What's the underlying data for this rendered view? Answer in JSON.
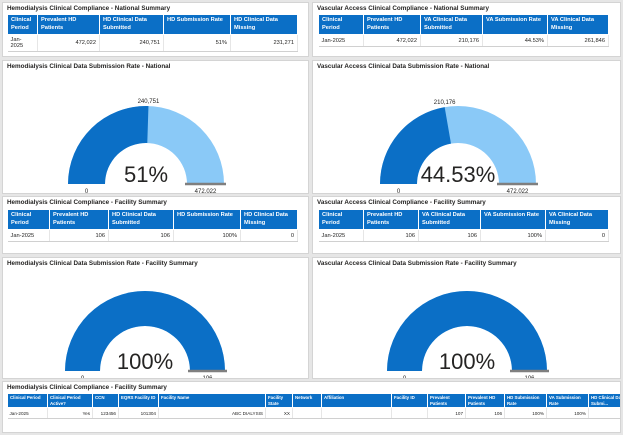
{
  "colors": {
    "header_blue": "#0b6fc6",
    "gauge_fill": "#0b6fc6",
    "gauge_bg": "#8ac9f7",
    "gauge_target": "#7f7f7f"
  },
  "hd_national": {
    "title": "Hemodialysis Clinical Compliance - National Summary",
    "headers": [
      "Clinical Period",
      "Prevalent HD Patients",
      "HD Clinical Data Submitted",
      "HD Submission Rate",
      "HD Clinical Data Missing"
    ],
    "rows": [
      [
        "Jan-2025",
        "472,022",
        "240,751",
        "51%",
        "231,271"
      ]
    ]
  },
  "va_national": {
    "title": "Vascular Access Clinical Compliance - National Summary",
    "headers": [
      "Clinical Period",
      "Prevalent HD Patients",
      "VA Clinical Data Submitted",
      "VA Submission Rate",
      "VA Clinical Data Missing"
    ],
    "rows": [
      [
        "Jan-2025",
        "472,022",
        "210,176",
        "44.53%",
        "261,846"
      ]
    ]
  },
  "hd_national_gauge": {
    "title": "Hemodialysis Clinical Data Submission Rate - National",
    "value": 240751,
    "max": 472022,
    "value_label": "240,751",
    "pct_label": "51%",
    "min_label": "0",
    "max_label": "472,022"
  },
  "va_national_gauge": {
    "title": "Vascular Access Clinical Data Submission Rate - National",
    "value": 210176,
    "max": 472022,
    "value_label": "210,176",
    "pct_label": "44.53%",
    "min_label": "0",
    "max_label": "472,022"
  },
  "hd_facility": {
    "title": "Hemodialysis Clinical Compliance - Facility Summary",
    "headers": [
      "Clinical Period",
      "Prevalent HD Patients",
      "HD Clinical Data Submitted",
      "HD Submission Rate",
      "HD Clinical Data Missing"
    ],
    "rows": [
      [
        "Jan-2025",
        "106",
        "106",
        "100%",
        "0"
      ]
    ]
  },
  "va_facility": {
    "title": "Vascular Access Clinical Compliance - Facility Summary",
    "headers": [
      "Clinical Period",
      "Prevalent HD Patients",
      "VA Clinical Data Submitted",
      "VA Submission Rate",
      "VA Clinical Data Missing"
    ],
    "rows": [
      [
        "Jan-2025",
        "106",
        "106",
        "100%",
        "0"
      ]
    ]
  },
  "hd_facility_gauge": {
    "title": "Hemodialysis Clinical Data Submission Rate - Facility Summary",
    "value": 106,
    "max": 106,
    "pct_label": "100%",
    "min_label": "0",
    "max_label": "106"
  },
  "va_facility_gauge": {
    "title": "Vascular Access Clinical Data Submission Rate - Facility Summary",
    "value": 106,
    "max": 106,
    "pct_label": "100%",
    "min_label": "0",
    "max_label": "106"
  },
  "facility_detail": {
    "title": "Hemodialysis Clinical Compliance - Facility Summary",
    "headers": [
      "Clinical Period",
      "Clinical Period Active?",
      "CCN",
      "EQRS Facility ID",
      "Facility Name",
      "Facility State",
      "Network",
      "Affiliation",
      "Facility ID",
      "Prevalent Patients",
      "Prevalent HD Patients",
      "HD Submission Rate",
      "VA Submission Rate",
      "HD Clinical Data Submi..."
    ],
    "rows": [
      [
        "Jan-2025",
        "Yes",
        "123456",
        "101304",
        "ABC DIALYSIS",
        "XX",
        "",
        "",
        "",
        "107",
        "106",
        "100%",
        "100%",
        ""
      ]
    ]
  }
}
